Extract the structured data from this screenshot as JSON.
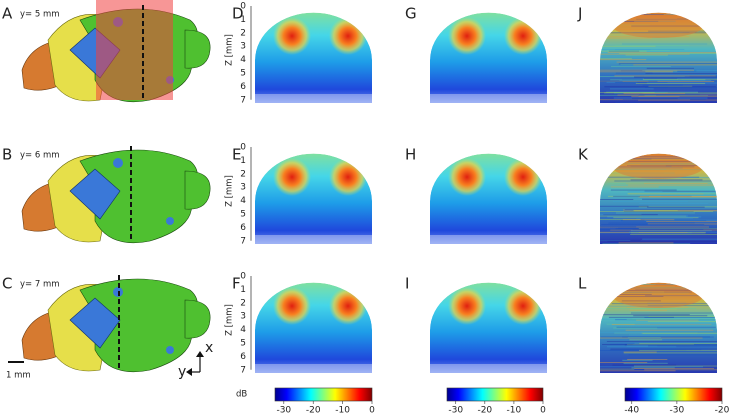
{
  "rows": [
    {
      "brain_letter": "A",
      "depth_label": "y= 5 mm",
      "sim_letter": "D",
      "sim2_letter": "G",
      "meas_letter": "J"
    },
    {
      "brain_letter": "B",
      "depth_label": "y= 6 mm",
      "sim_letter": "E",
      "sim2_letter": "H",
      "meas_letter": "K"
    },
    {
      "brain_letter": "C",
      "depth_label": "y= 7 mm",
      "sim_letter": "F",
      "sim2_letter": "I",
      "meas_letter": "L"
    }
  ],
  "z_axis": {
    "label": "Z [mm]",
    "ticks": [
      0,
      1,
      2,
      3,
      4,
      5,
      6,
      7
    ]
  },
  "scale_bar": "1 mm",
  "axes_icon": {
    "x": "x",
    "y": "y"
  },
  "colorbars": [
    {
      "unit": "dB",
      "lim": [
        -33,
        0
      ],
      "ticks": [
        -30,
        -20,
        -10,
        0
      ]
    },
    {
      "lim": [
        -33,
        0
      ],
      "ticks": [
        -30,
        -20,
        -10,
        0
      ]
    },
    {
      "lim": [
        -41.5,
        -20
      ],
      "ticks": [
        -40,
        -30,
        -20
      ]
    }
  ]
}
